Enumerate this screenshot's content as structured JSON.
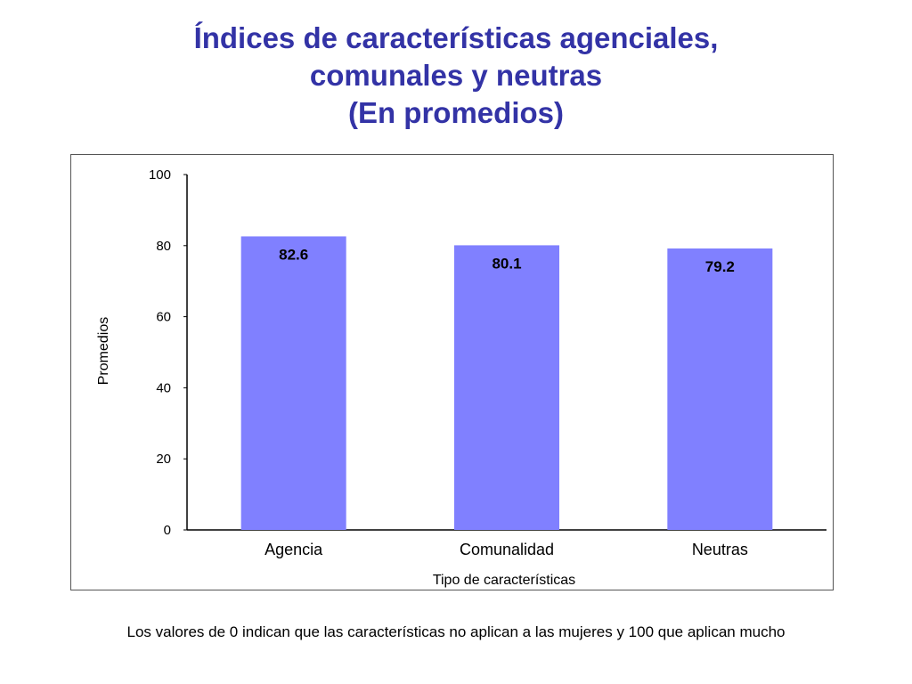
{
  "slide": {
    "title_lines": [
      "Índices de características agenciales,",
      "comunales y neutras",
      "(En promedios)"
    ],
    "footnote": "Los valores de 0 indican que las características no aplican a las mujeres y 100 que aplican mucho"
  },
  "colors": {
    "title": "#3333a6",
    "bar": "#8080ff",
    "axis": "#000000",
    "frame": "#555555"
  },
  "chart_data": {
    "type": "bar",
    "categories": [
      "Agencia",
      "Comunalidad",
      "Neutras"
    ],
    "values": [
      82.6,
      80.1,
      79.2
    ],
    "data_labels": [
      "82.6",
      "80.1",
      "79.2"
    ],
    "xlabel": "Tipo de características",
    "ylabel": "Promedios",
    "ylim": [
      0,
      100
    ],
    "yticks": [
      0,
      20,
      40,
      60,
      80,
      100
    ],
    "grid": false,
    "legend": "none"
  }
}
